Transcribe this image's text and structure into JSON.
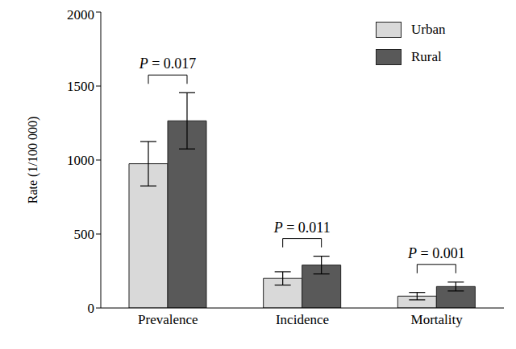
{
  "chart_data": {
    "type": "bar",
    "categories": [
      "Prevalence",
      "Incidence",
      "Mortality"
    ],
    "series": [
      {
        "name": "Urban",
        "color": "#d9d9d9",
        "values": [
          975,
          200,
          80
        ],
        "error": [
          150,
          45,
          25
        ]
      },
      {
        "name": "Rural",
        "color": "#595959",
        "values": [
          1265,
          290,
          145
        ],
        "error": [
          190,
          60,
          30
        ]
      }
    ],
    "ylabel": "Rate (1/100 000)",
    "ylim": [
      0,
      2000
    ],
    "yticks": [
      0,
      500,
      1000,
      1500,
      2000
    ],
    "grid": false,
    "legend": "upper right",
    "annotations": [
      {
        "category": "Prevalence",
        "text": "P = 0.017"
      },
      {
        "category": "Incidence",
        "text": "P = 0.011"
      },
      {
        "category": "Mortality",
        "text": "P = 0.001"
      }
    ]
  }
}
